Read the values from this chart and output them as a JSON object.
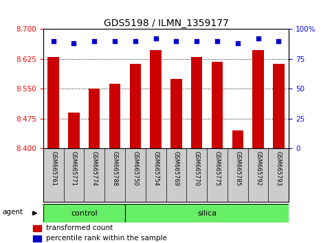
{
  "title": "GDS5198 / ILMN_1359177",
  "samples": [
    "GSM665761",
    "GSM665771",
    "GSM665774",
    "GSM665788",
    "GSM665750",
    "GSM665754",
    "GSM665769",
    "GSM665770",
    "GSM665775",
    "GSM665785",
    "GSM665792",
    "GSM665793"
  ],
  "bar_values": [
    8.63,
    8.49,
    8.55,
    8.562,
    8.612,
    8.648,
    8.575,
    8.63,
    8.618,
    8.445,
    8.648,
    8.612
  ],
  "percentile_values": [
    90,
    88,
    90,
    90,
    90,
    92,
    90,
    90,
    90,
    88,
    92,
    90
  ],
  "ylim_left": [
    8.4,
    8.7
  ],
  "ylim_right": [
    0,
    100
  ],
  "yticks_left": [
    8.4,
    8.475,
    8.55,
    8.625,
    8.7
  ],
  "yticks_right": [
    0,
    25,
    50,
    75,
    100
  ],
  "bar_color": "#cc0000",
  "percentile_color": "#0000cc",
  "control_samples": 4,
  "silica_samples": 8,
  "control_label": "control",
  "silica_label": "silica",
  "agent_label": "agent",
  "legend_bar_label": "transformed count",
  "legend_pct_label": "percentile rank within the sample",
  "group_bg_color": "#66ee66",
  "tick_label_area_color": "#cccccc",
  "background_color": "#ffffff",
  "title_fontsize": 10,
  "tick_fontsize": 7.5,
  "label_fontsize": 8
}
